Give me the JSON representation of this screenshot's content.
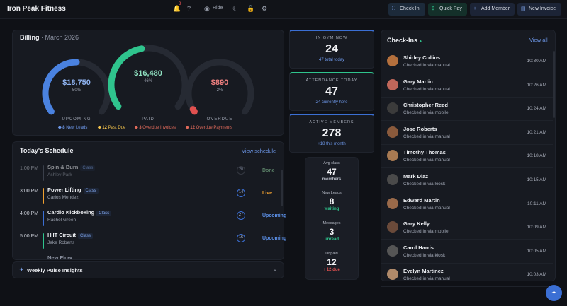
{
  "header": {
    "brand": "Iron Peak Fitness",
    "notifications_count": "2",
    "hide_label": "Hide",
    "buttons": {
      "check_in": "Check In",
      "quick_pay": "Quick Pay",
      "add_member": "Add Member",
      "new_invoice": "New Invoice"
    }
  },
  "billing": {
    "title": "Billing",
    "period": "March 2026",
    "gauges": [
      {
        "label": "UPCOMING",
        "value": "$18,750",
        "pct_label": "50%",
        "fraction": 0.5,
        "color": "#4a82e0"
      },
      {
        "label": "PAID",
        "value": "$16,480",
        "pct_label": "46%",
        "fraction": 0.46,
        "color": "#2fc48d"
      },
      {
        "label": "OVERDUE",
        "value": "$890",
        "pct_label": "2%",
        "fraction": 0.02,
        "color": "#e0504f"
      }
    ],
    "legend": [
      {
        "count": "8",
        "text": "New Leads",
        "color": "#6d97e8"
      },
      {
        "count": "12",
        "text": "Past Due",
        "color": "#f1c14b"
      },
      {
        "count": "3",
        "text": "Overdue Invoices",
        "color": "#e06a5a"
      },
      {
        "count": "12",
        "text": "Overdue Payments",
        "color": "#e06a5a"
      }
    ]
  },
  "schedule": {
    "title": "Today's Schedule",
    "view_link": "View schedule",
    "items": [
      {
        "time": "1:00 PM",
        "name": "Spin & Burn",
        "tag": "Class",
        "coach": "Ashley Park",
        "num": "20",
        "status": "Done",
        "bar": "#3a3f4a",
        "status_color": "#5a7f66",
        "dim": true
      },
      {
        "time": "3:00 PM",
        "name": "Power Lifting",
        "tag": "Class",
        "coach": "Carlos Mendez",
        "num": "14",
        "status": "Live",
        "bar": "#f0a030",
        "status_color": "#f0a030",
        "dim": false
      },
      {
        "time": "4:00 PM",
        "name": "Cardio Kickboxing",
        "tag": "Class",
        "coach": "Rachel Green",
        "num": "27",
        "status": "Upcoming",
        "bar": "#3b6fd4",
        "status_color": "#5b8fe6",
        "dim": false
      },
      {
        "time": "5:00 PM",
        "name": "HIIT Circuit",
        "tag": "Class",
        "coach": "Jake Roberts",
        "num": "16",
        "status": "Upcoming",
        "bar": "#2fc48d",
        "status_color": "#5b8fe6",
        "dim": false
      }
    ],
    "partial_name": "New Flow"
  },
  "insights": {
    "title": "Weekly Pulse Insights"
  },
  "stats": [
    {
      "label": "IN GYM NOW",
      "value": "24",
      "sub": "47 total today"
    },
    {
      "label": "ATTENDANCE TODAY",
      "value": "47",
      "sub": "24 currently here"
    },
    {
      "label": "ACTIVE MEMBERS",
      "value": "278",
      "sub": "+18 this month"
    }
  ],
  "mini": [
    {
      "label": "Avg class",
      "value": "47",
      "sub": "members",
      "color": "#b4b9c4"
    },
    {
      "label": "New Leads",
      "value": "8",
      "sub": "waiting",
      "color": "#2fc48d"
    },
    {
      "label": "Messages",
      "value": "3",
      "sub": "unread",
      "color": "#2fc48d"
    },
    {
      "label": "Unpaid",
      "value": "12",
      "sub": "↑ 12 due",
      "color": "#e0504f"
    }
  ],
  "checkins": {
    "title": "Check-Ins",
    "view_all": "View all",
    "items": [
      {
        "name": "Shirley Collins",
        "via": "Checked in via manual",
        "time": "10:30 AM",
        "avatar": "#b4703d"
      },
      {
        "name": "Gary Martin",
        "via": "Checked in via manual",
        "time": "10:26 AM",
        "avatar": "#c0675a"
      },
      {
        "name": "Christopher Reed",
        "via": "Checked in via mobile",
        "time": "10:24 AM",
        "avatar": "#3b3b3b"
      },
      {
        "name": "Jose Roberts",
        "via": "Checked in via manual",
        "time": "10:21 AM",
        "avatar": "#8a5a3c"
      },
      {
        "name": "Timothy Thomas",
        "via": "Checked in via manual",
        "time": "10:18 AM",
        "avatar": "#a87a52"
      },
      {
        "name": "Mark Diaz",
        "via": "Checked in via kiosk",
        "time": "10:15 AM",
        "avatar": "#4a4a4a"
      },
      {
        "name": "Edward Martin",
        "via": "Checked in via manual",
        "time": "10:11 AM",
        "avatar": "#9a6a4a"
      },
      {
        "name": "Gary Kelly",
        "via": "Checked in via mobile",
        "time": "10:09 AM",
        "avatar": "#6a4a3a"
      },
      {
        "name": "Carol Harris",
        "via": "Checked in via kiosk",
        "time": "10:05 AM",
        "avatar": "#555555"
      },
      {
        "name": "Evelyn Martinez",
        "via": "Checked in via manual",
        "time": "10:03 AM",
        "avatar": "#b08a6a"
      }
    ]
  }
}
